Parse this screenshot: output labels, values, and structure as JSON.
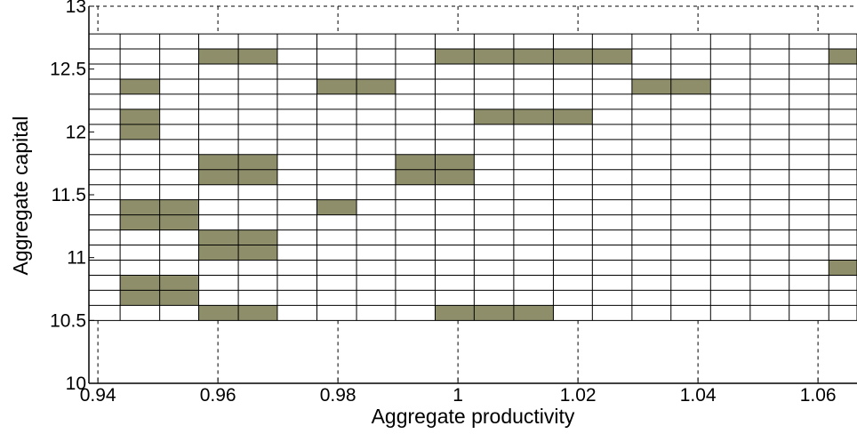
{
  "chart_data": {
    "type": "heatmap",
    "xlabel": "Aggregate productivity",
    "ylabel": "Aggregate capital",
    "xlim": [
      0.9385,
      1.0665
    ],
    "ylim": [
      10,
      13
    ],
    "xticks": [
      0.94,
      0.96,
      0.98,
      1,
      1.02,
      1.04,
      1.06
    ],
    "xtick_labels": [
      "0.94",
      "0.96",
      "0.98",
      "1",
      "1.02",
      "1.04",
      "1.06"
    ],
    "yticks": [
      10,
      10.5,
      11,
      11.5,
      12,
      12.5,
      13
    ],
    "ytick_labels": [
      "10",
      "10.5",
      "11",
      "11.5",
      "12",
      "12.5",
      "13"
    ],
    "grid": true,
    "grid_x_edges": [
      0.9385,
      0.9437,
      0.9503,
      0.9568,
      0.9634,
      0.9699,
      0.9765,
      0.9831,
      0.9896,
      0.9962,
      1.0027,
      1.0093,
      1.0159,
      1.0224,
      1.029,
      1.0355,
      1.0421,
      1.0487,
      1.0552,
      1.0618,
      1.0665
    ],
    "grid_y_edges": [
      10.5,
      10.62,
      10.74,
      10.86,
      10.98,
      11.1,
      11.22,
      11.34,
      11.46,
      11.58,
      11.7,
      11.82,
      11.94,
      12.06,
      12.18,
      12.3,
      12.42,
      12.54,
      12.66,
      12.78
    ],
    "occupied_cells": [
      {
        "col": 3,
        "row": 17
      },
      {
        "col": 4,
        "row": 17
      },
      {
        "col": 9,
        "row": 17
      },
      {
        "col": 10,
        "row": 17
      },
      {
        "col": 11,
        "row": 17
      },
      {
        "col": 12,
        "row": 17
      },
      {
        "col": 13,
        "row": 17
      },
      {
        "col": 19,
        "row": 17
      },
      {
        "col": 1,
        "row": 15
      },
      {
        "col": 6,
        "row": 15
      },
      {
        "col": 7,
        "row": 15
      },
      {
        "col": 14,
        "row": 15
      },
      {
        "col": 15,
        "row": 15
      },
      {
        "col": 1,
        "row": 13
      },
      {
        "col": 10,
        "row": 13
      },
      {
        "col": 11,
        "row": 13
      },
      {
        "col": 12,
        "row": 13
      },
      {
        "col": 1,
        "row": 12
      },
      {
        "col": 3,
        "row": 10
      },
      {
        "col": 4,
        "row": 10
      },
      {
        "col": 8,
        "row": 10
      },
      {
        "col": 9,
        "row": 10
      },
      {
        "col": 3,
        "row": 9
      },
      {
        "col": 4,
        "row": 9
      },
      {
        "col": 8,
        "row": 9
      },
      {
        "col": 9,
        "row": 9
      },
      {
        "col": 1,
        "row": 7
      },
      {
        "col": 2,
        "row": 7
      },
      {
        "col": 6,
        "row": 7
      },
      {
        "col": 1,
        "row": 6
      },
      {
        "col": 2,
        "row": 6
      },
      {
        "col": 3,
        "row": 5
      },
      {
        "col": 4,
        "row": 5
      },
      {
        "col": 3,
        "row": 4
      },
      {
        "col": 4,
        "row": 4
      },
      {
        "col": 19,
        "row": 3
      },
      {
        "col": 1,
        "row": 2
      },
      {
        "col": 2,
        "row": 2
      },
      {
        "col": 1,
        "row": 1
      },
      {
        "col": 2,
        "row": 1
      },
      {
        "col": 3,
        "row": 0
      },
      {
        "col": 4,
        "row": 0
      },
      {
        "col": 9,
        "row": 0
      },
      {
        "col": 10,
        "row": 0
      },
      {
        "col": 11,
        "row": 0
      }
    ],
    "colors": {
      "occupied": "#8e8f6a",
      "empty": "#ffffff",
      "grid_line": "#000000",
      "background": "#ffffff"
    }
  }
}
